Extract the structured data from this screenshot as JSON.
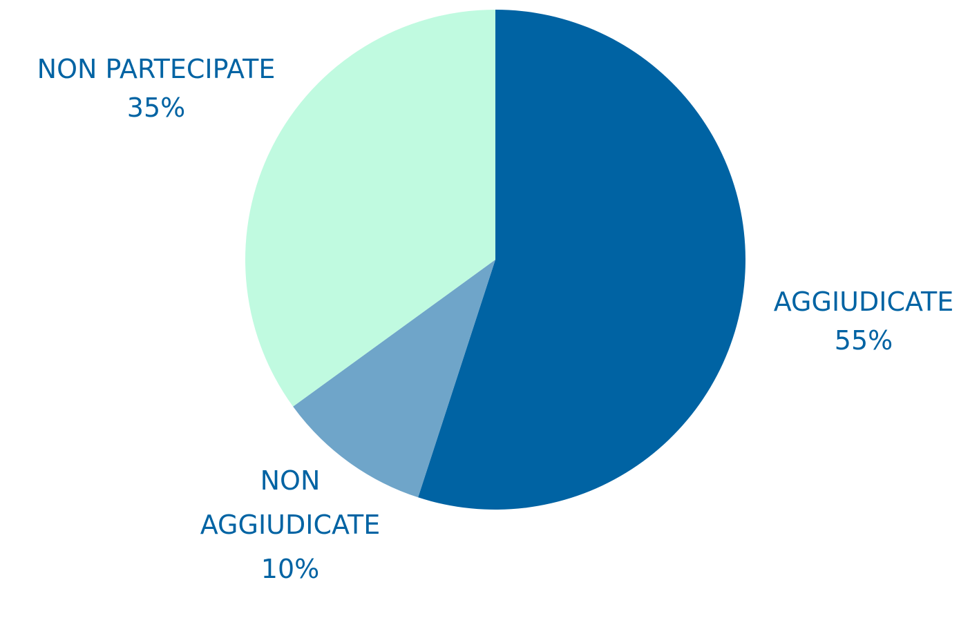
{
  "chart_data": {
    "type": "pie",
    "categories": [
      "AGGIUDICATE",
      "NON AGGIUDICATE",
      "NON PARTECIPATE"
    ],
    "values": [
      55,
      10,
      35
    ],
    "value_labels": [
      "55%",
      "10%",
      "35%"
    ],
    "colors": [
      "#0063a3",
      "#6fa5c9",
      "#c0fae0"
    ]
  }
}
